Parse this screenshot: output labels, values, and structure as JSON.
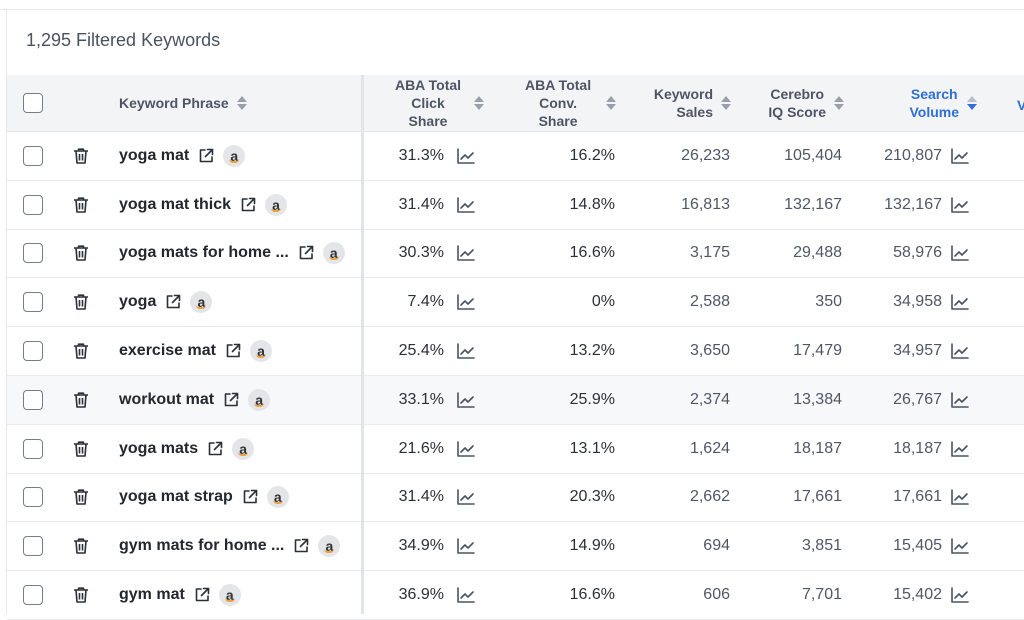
{
  "summary": {
    "count_label": "1,295 Filtered Keywords"
  },
  "columns": {
    "keyword_phrase": "Keyword Phrase",
    "aba_click_share": [
      "ABA Total",
      "Click Share"
    ],
    "aba_conv_share": [
      "ABA Total",
      "Conv. Share"
    ],
    "keyword_sales": [
      "Keyword",
      "Sales"
    ],
    "cerebro_iq": [
      "Cerebro",
      "IQ Score"
    ],
    "search_volume": [
      "Search",
      "Volume"
    ],
    "cut_off_next": "V"
  },
  "colors": {
    "accent": "#2f6fd6",
    "amazon_smile": "#f0a03c",
    "border": "#e6e8ec"
  },
  "icons": {
    "delete": "trash-icon",
    "open": "external-link-icon",
    "amazon": "amazon-icon",
    "trend": "trend-chart-icon",
    "sort": "sort-icon"
  },
  "rows": [
    {
      "keyword": "yoga mat",
      "click_share": "31.3%",
      "conv_share": "16.2%",
      "sales": "26,233",
      "iq_score": "105,404",
      "search_volume": "210,807"
    },
    {
      "keyword": "yoga mat thick",
      "click_share": "31.4%",
      "conv_share": "14.8%",
      "sales": "16,813",
      "iq_score": "132,167",
      "search_volume": "132,167"
    },
    {
      "keyword": "yoga mats for home ...",
      "click_share": "30.3%",
      "conv_share": "16.6%",
      "sales": "3,175",
      "iq_score": "29,488",
      "search_volume": "58,976"
    },
    {
      "keyword": "yoga",
      "click_share": "7.4%",
      "conv_share": "0%",
      "sales": "2,588",
      "iq_score": "350",
      "search_volume": "34,958"
    },
    {
      "keyword": "exercise mat",
      "click_share": "25.4%",
      "conv_share": "13.2%",
      "sales": "3,650",
      "iq_score": "17,479",
      "search_volume": "34,957"
    },
    {
      "keyword": "workout mat",
      "click_share": "33.1%",
      "conv_share": "25.9%",
      "sales": "2,374",
      "iq_score": "13,384",
      "search_volume": "26,767"
    },
    {
      "keyword": "yoga mats",
      "click_share": "21.6%",
      "conv_share": "13.1%",
      "sales": "1,624",
      "iq_score": "18,187",
      "search_volume": "18,187"
    },
    {
      "keyword": "yoga mat strap",
      "click_share": "31.4%",
      "conv_share": "20.3%",
      "sales": "2,662",
      "iq_score": "17,661",
      "search_volume": "17,661"
    },
    {
      "keyword": "gym mats for home ...",
      "click_share": "34.9%",
      "conv_share": "14.9%",
      "sales": "694",
      "iq_score": "3,851",
      "search_volume": "15,405"
    },
    {
      "keyword": "gym mat",
      "click_share": "36.9%",
      "conv_share": "16.6%",
      "sales": "606",
      "iq_score": "7,701",
      "search_volume": "15,402"
    }
  ]
}
